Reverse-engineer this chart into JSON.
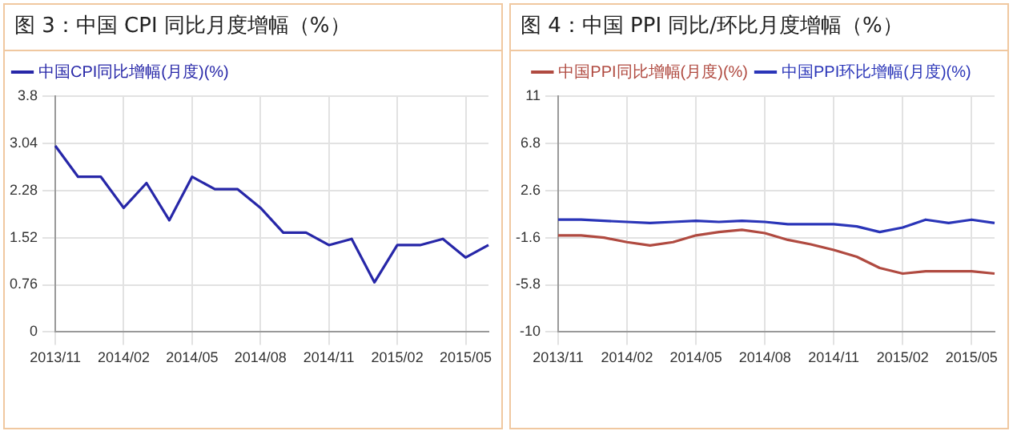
{
  "chart_data": [
    {
      "type": "line",
      "title": "图 3：中国 CPI 同比月度增幅（%）",
      "categories": [
        "2013/11",
        null,
        null,
        "2014/02",
        null,
        null,
        "2014/05",
        null,
        null,
        "2014/08",
        null,
        null,
        "2014/11",
        null,
        null,
        "2015/02",
        null,
        null,
        "2015/05",
        null
      ],
      "series": [
        {
          "name": "中国CPI同比增幅(月度)(%)",
          "color": "#2727a8",
          "values": [
            3.0,
            2.5,
            2.5,
            2.0,
            2.4,
            1.8,
            2.5,
            2.3,
            2.3,
            2.0,
            1.6,
            1.6,
            1.4,
            1.5,
            0.8,
            1.4,
            1.4,
            1.5,
            1.2,
            1.4
          ]
        }
      ],
      "ylim": [
        0,
        3.8
      ],
      "yticks": [
        0,
        0.76,
        1.52,
        2.28,
        3.04,
        3.8
      ],
      "grid": true,
      "legend": "top left",
      "marker": "none"
    },
    {
      "type": "line",
      "title": "图 4：中国 PPI 同比/环比月度增幅（%）",
      "categories": [
        "2013/11",
        null,
        null,
        "2014/02",
        null,
        null,
        "2014/05",
        null,
        null,
        "2014/08",
        null,
        null,
        "2014/11",
        null,
        null,
        "2015/02",
        null,
        null,
        "2015/05",
        null
      ],
      "series": [
        {
          "name": "中国PPI同比增幅(月度)(%)",
          "color": "#b04a40",
          "values": [
            -1.4,
            -1.4,
            -1.6,
            -2.0,
            -2.3,
            -2.0,
            -1.4,
            -1.1,
            -0.9,
            -1.2,
            -1.8,
            -2.2,
            -2.7,
            -3.3,
            -4.3,
            -4.8,
            -4.6,
            -4.6,
            -4.6,
            -4.8
          ]
        },
        {
          "name": "中国PPI环比增幅(月度)(%)",
          "color": "#2a35b8",
          "values": [
            0.0,
            0.0,
            -0.1,
            -0.2,
            -0.3,
            -0.2,
            -0.1,
            -0.2,
            -0.1,
            -0.2,
            -0.4,
            -0.4,
            -0.4,
            -0.6,
            -1.1,
            -0.7,
            0.0,
            -0.3,
            0.0,
            -0.3
          ]
        }
      ],
      "ylim": [
        -10,
        11
      ],
      "yticks": [
        -10,
        -5.8,
        -1.6,
        2.6,
        6.8,
        11
      ],
      "grid": true,
      "legend": "top",
      "marker": "none"
    }
  ]
}
